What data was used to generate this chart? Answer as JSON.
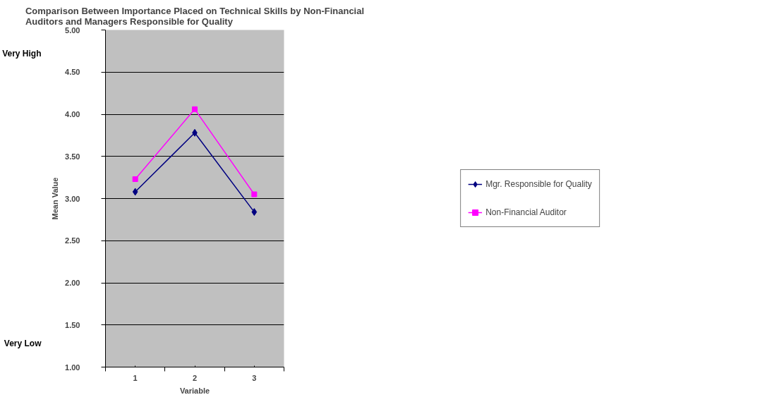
{
  "chart_data": {
    "type": "line",
    "title": "Comparison Between Importance Placed on Technical Skills by Non-Financial Auditors and Managers Responsible for Quality",
    "xlabel": "Variable",
    "ylabel": "Mean Value",
    "categories": [
      "1",
      "2",
      "3"
    ],
    "series": [
      {
        "name": "Mgr. Responsible for Quality",
        "color": "#000080",
        "values": [
          3.08,
          3.78,
          2.84
        ],
        "marker": "diamond"
      },
      {
        "name": "Non-Financial Auditor",
        "color": "#ff00ff",
        "values": [
          3.23,
          4.06,
          3.05
        ],
        "marker": "square"
      }
    ],
    "ylim": [
      1.0,
      5.0
    ],
    "yticks": [
      {
        "value": 1.0,
        "label": "1.00"
      },
      {
        "value": 1.5,
        "label": "1.50"
      },
      {
        "value": 2.0,
        "label": "2.00"
      },
      {
        "value": 2.5,
        "label": "2.50"
      },
      {
        "value": 3.0,
        "label": "3.00"
      },
      {
        "value": 3.5,
        "label": "3.50"
      },
      {
        "value": 4.0,
        "label": "4.00"
      },
      {
        "value": 4.5,
        "label": "4.50"
      },
      {
        "value": 5.0,
        "label": "5.00"
      }
    ],
    "annotations": [
      "Very High",
      "Very Low"
    ],
    "grid": "y",
    "legend": "right",
    "line_style": "solid"
  }
}
